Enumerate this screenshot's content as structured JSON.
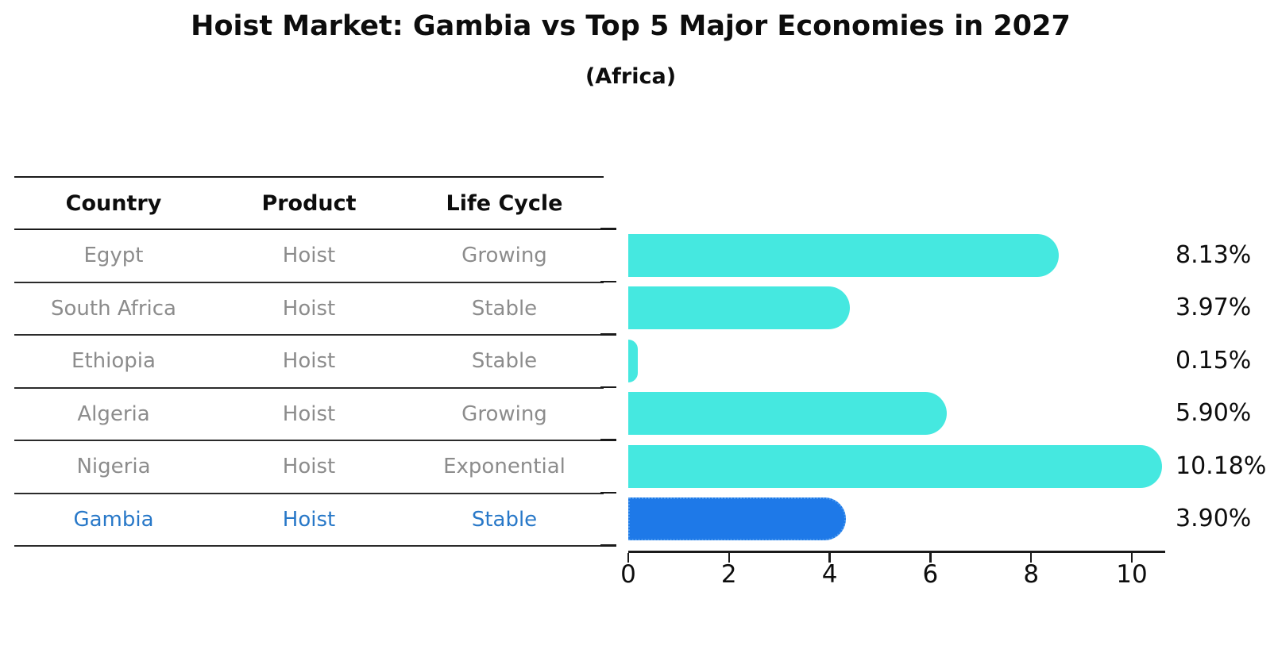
{
  "figure": {
    "title": "Hoist Market: Gambia vs Top 5 Major Economies in 2027",
    "subtitle": "(Africa)"
  },
  "table": {
    "headers": [
      "Country",
      "Product",
      "Life Cycle"
    ]
  },
  "rows": [
    {
      "country": "Egypt",
      "product": "Hoist",
      "life_cycle": "Growing",
      "value": 8.13,
      "value_label": "8.13%",
      "highlight": false
    },
    {
      "country": "South Africa",
      "product": "Hoist",
      "life_cycle": "Stable",
      "value": 3.97,
      "value_label": "3.97%",
      "highlight": false
    },
    {
      "country": "Ethiopia",
      "product": "Hoist",
      "life_cycle": "Stable",
      "value": 0.15,
      "value_label": "0.15%",
      "highlight": false
    },
    {
      "country": "Algeria",
      "product": "Hoist",
      "life_cycle": "Growing",
      "value": 5.9,
      "value_label": "5.90%",
      "highlight": false
    },
    {
      "country": "Nigeria",
      "product": "Hoist",
      "life_cycle": "Exponential",
      "value": 10.18,
      "value_label": "10.18%",
      "highlight": false
    },
    {
      "country": "Gambia",
      "product": "Hoist",
      "life_cycle": "Stable",
      "value": 3.9,
      "value_label": "3.90%",
      "highlight": true
    }
  ],
  "chart_data": {
    "type": "bar",
    "orientation": "horizontal",
    "title": "Hoist Market: Gambia vs Top 5 Major Economies in 2027",
    "subtitle": "(Africa)",
    "categories": [
      "Egypt",
      "South Africa",
      "Ethiopia",
      "Algeria",
      "Nigeria",
      "Gambia"
    ],
    "values": [
      8.13,
      3.97,
      0.15,
      5.9,
      10.18,
      3.9
    ],
    "data_labels": [
      "8.13%",
      "3.97%",
      "0.15%",
      "5.90%",
      "10.18%",
      "3.90%"
    ],
    "table_columns": [
      "Country",
      "Product",
      "Life Cycle"
    ],
    "table_values": [
      [
        "Egypt",
        "Hoist",
        "Growing"
      ],
      [
        "South Africa",
        "Hoist",
        "Stable"
      ],
      [
        "Ethiopia",
        "Hoist",
        "Stable"
      ],
      [
        "Algeria",
        "Hoist",
        "Growing"
      ],
      [
        "Nigeria",
        "Hoist",
        "Exponential"
      ],
      [
        "Gambia",
        "Hoist",
        "Stable"
      ]
    ],
    "xlabel": "",
    "ylabel": "",
    "xlim": [
      0,
      10.66
    ],
    "xticks": [
      0,
      2,
      4,
      6,
      8,
      10
    ],
    "grid": false,
    "legend": false,
    "bar_color": "#45e8e0",
    "highlight_index": 5,
    "highlight_bar_color": "#1e79e8",
    "highlight_bar_edge": "dotted",
    "highlight_text_color": "#2878c8"
  }
}
